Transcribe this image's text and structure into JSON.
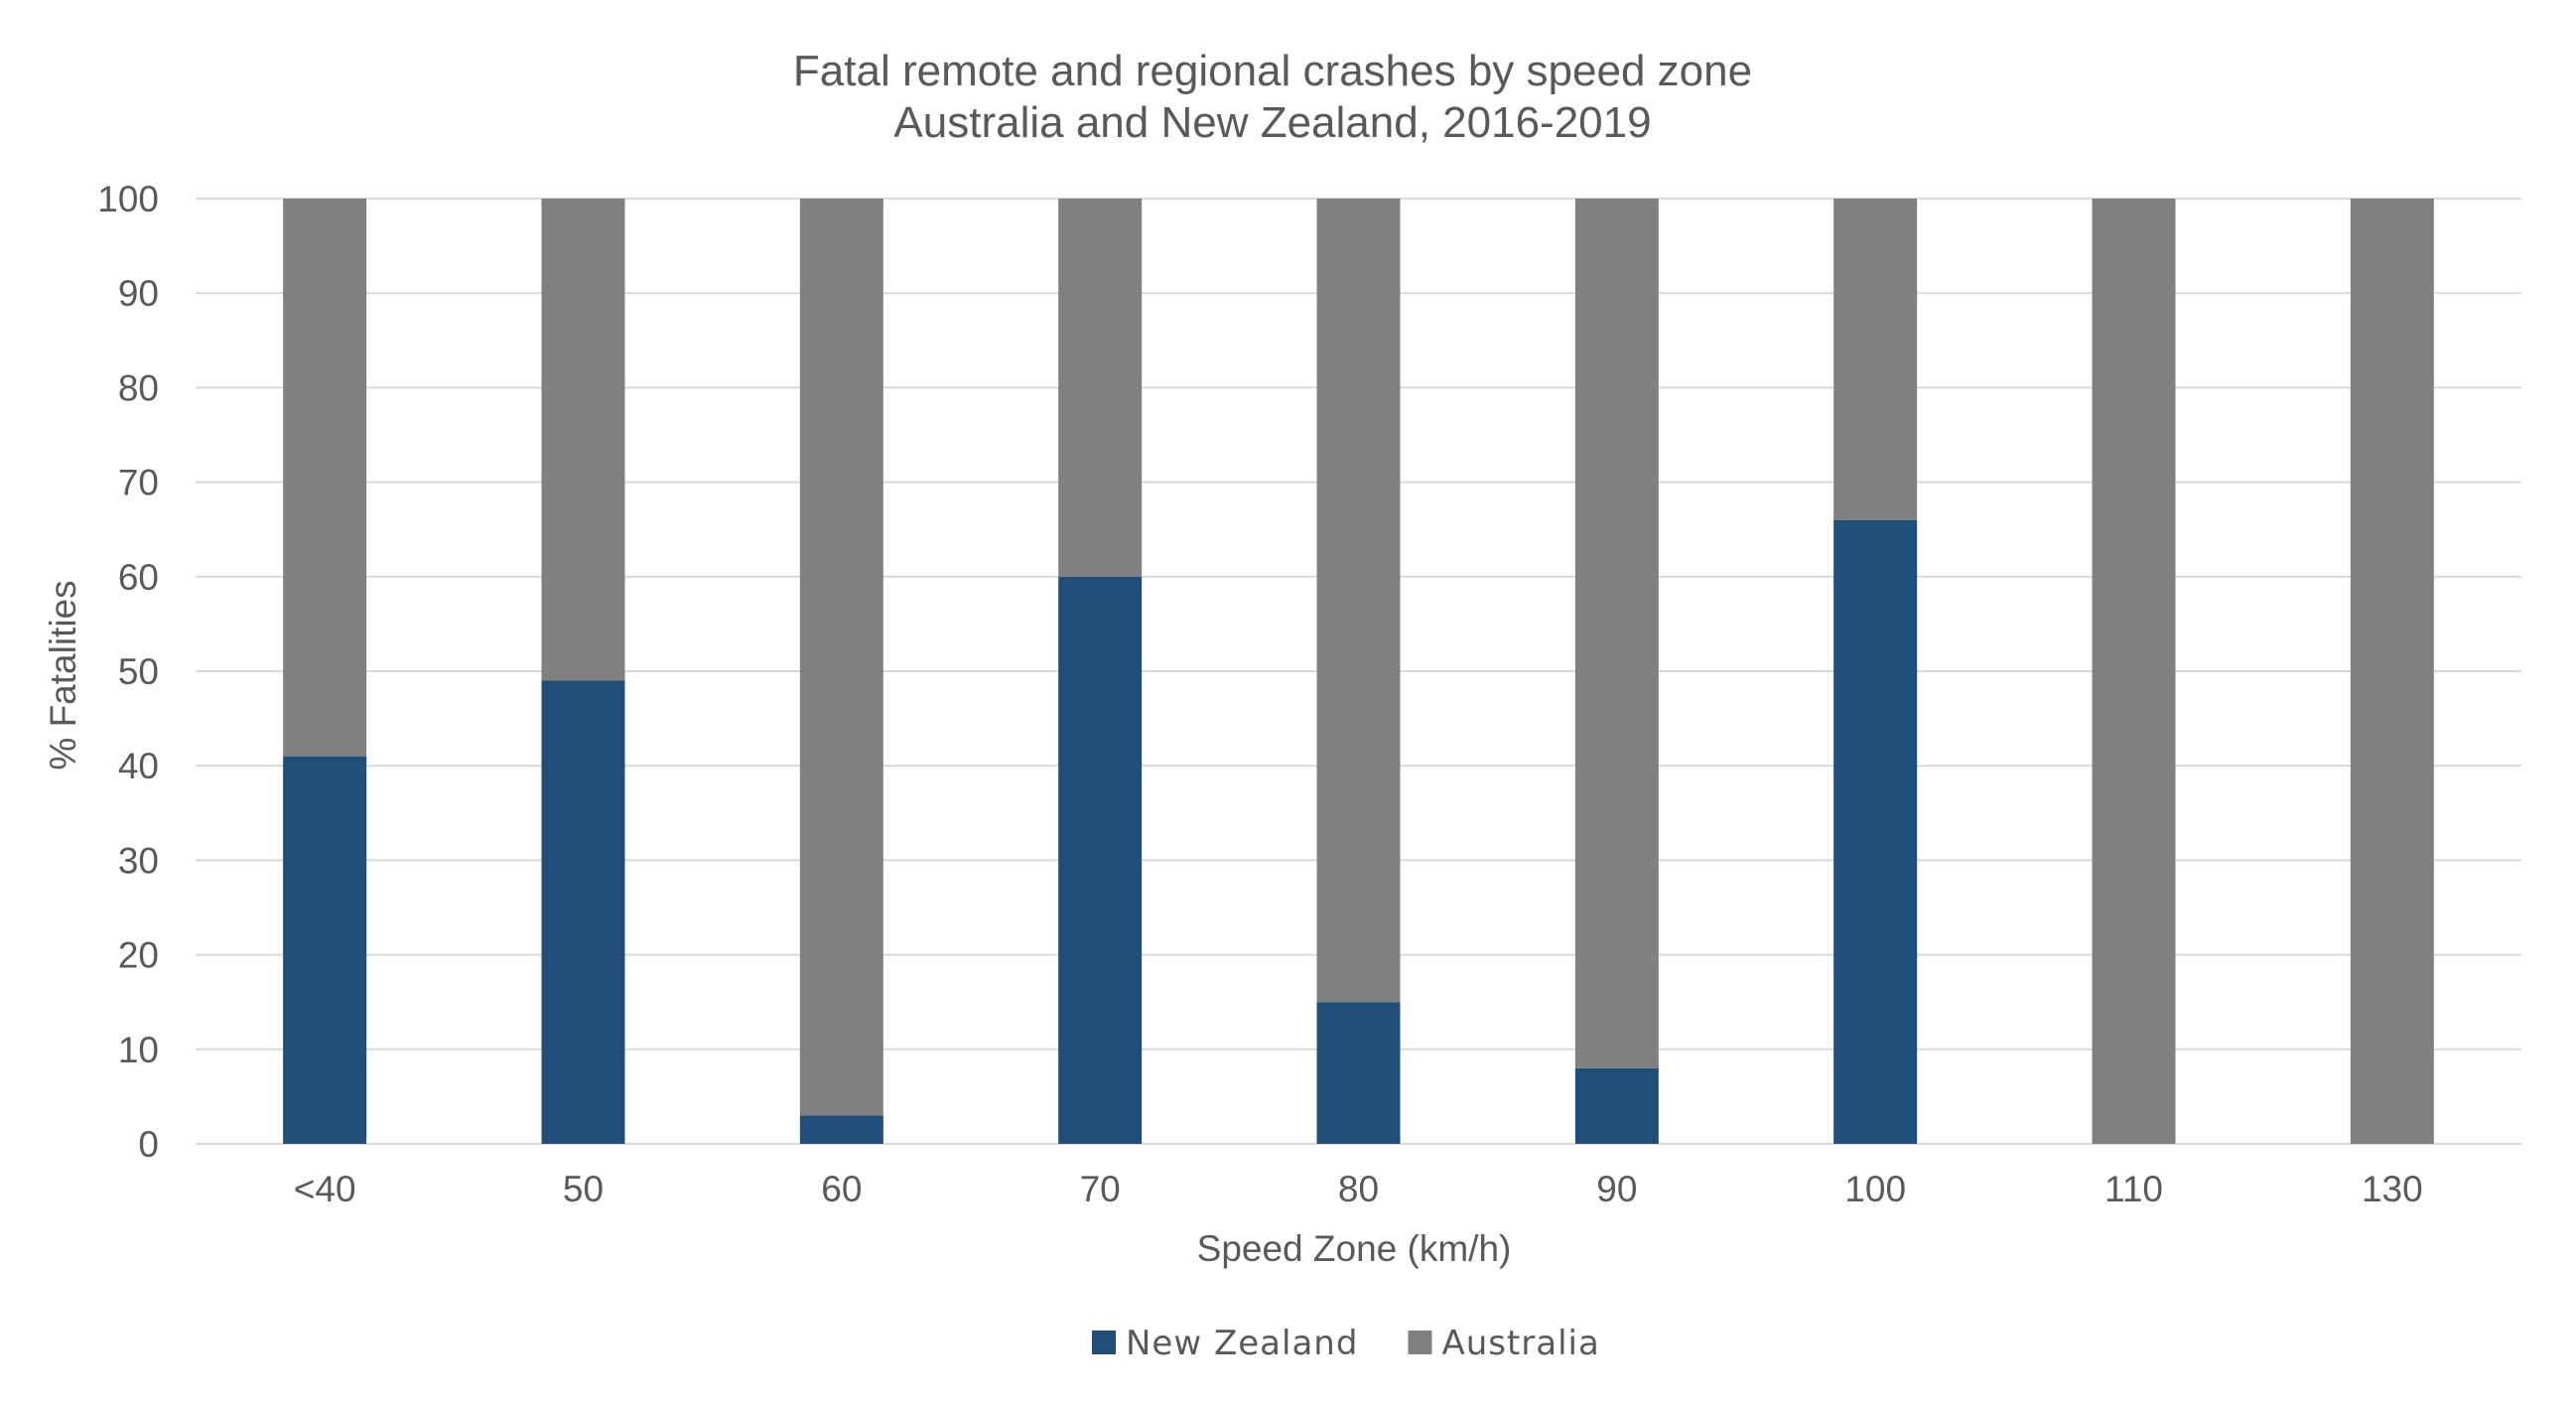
{
  "chart_data": {
    "type": "bar",
    "stacked": true,
    "title": "Fatal remote and regional crashes by speed zone",
    "subtitle": "Australia and New Zealand, 2016-2019",
    "xlabel": "Speed Zone (km/h)",
    "ylabel": "% Fatalities",
    "ylim": [
      0,
      100
    ],
    "yticks": [
      0,
      10,
      20,
      30,
      40,
      50,
      60,
      70,
      80,
      90,
      100
    ],
    "grid": true,
    "legend_position": "bottom",
    "categories": [
      "<40",
      "50",
      "60",
      "70",
      "80",
      "90",
      "100",
      "110",
      "130"
    ],
    "series": [
      {
        "name": "New Zealand",
        "color": "#1f4e79",
        "values": [
          41,
          49,
          3,
          60,
          15,
          8,
          66,
          0,
          0
        ]
      },
      {
        "name": "Australia",
        "color": "#808080",
        "values": [
          59,
          51,
          97,
          40,
          85,
          92,
          34,
          100,
          100
        ]
      }
    ]
  }
}
